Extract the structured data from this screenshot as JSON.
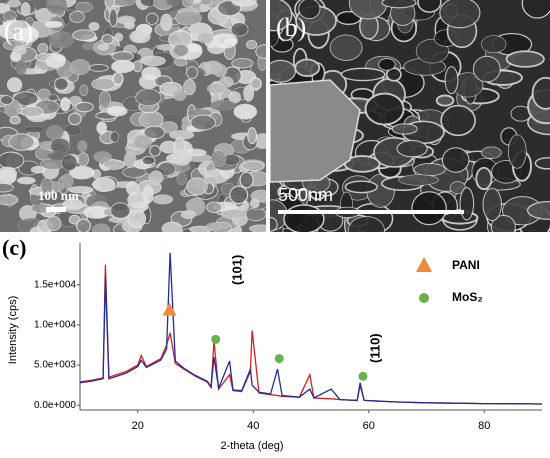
{
  "panels": {
    "a": {
      "label": "(a)",
      "scale_bar": "100 nm"
    },
    "b": {
      "label": "(b)",
      "scale_bar": "500nm"
    },
    "c": {
      "label": "(c)"
    }
  },
  "chart_data": {
    "type": "line",
    "x_label": "2-theta (deg)",
    "y_label": "Intensity (cps)",
    "x": [
      10,
      12,
      14,
      14.4,
      15,
      18,
      20,
      20.6,
      21.5,
      24,
      25,
      25.6,
      26.5,
      28,
      30,
      32,
      32.7,
      33.2,
      34,
      35.9,
      36.5,
      38,
      39.5,
      39.8,
      41,
      43,
      44.2,
      45,
      48,
      49.8,
      50.5,
      53.5,
      55,
      58,
      58.5,
      59.2,
      62,
      65,
      70,
      75,
      80,
      85,
      90
    ],
    "series": [
      {
        "name": "red",
        "color": "#d62020",
        "values": [
          2900,
          3100,
          3400,
          17500,
          3500,
          4200,
          5000,
          6200,
          4800,
          5800,
          7500,
          9000,
          5200,
          4500,
          3600,
          2900,
          2200,
          8000,
          2000,
          3800,
          1800,
          1700,
          4200,
          9300,
          1500,
          1300,
          1200,
          1100,
          1000,
          3800,
          900,
          800,
          700,
          600,
          2500,
          600,
          500,
          400,
          300,
          250,
          200,
          180,
          150
        ]
      },
      {
        "name": "blue",
        "color": "#1f2f9a",
        "values": [
          2800,
          3000,
          3300,
          16000,
          3300,
          4000,
          4800,
          5600,
          4700,
          5600,
          7000,
          19000,
          5500,
          4600,
          3700,
          3000,
          2300,
          6000,
          2100,
          5500,
          1900,
          1800,
          4500,
          2500,
          1600,
          1400,
          4500,
          1200,
          1000,
          2000,
          900,
          2000,
          700,
          600,
          2800,
          600,
          500,
          400,
          300,
          250,
          200,
          180,
          150
        ]
      }
    ],
    "markers": [
      {
        "name": "PANI",
        "color": "#f08a3c",
        "shape": "triangle",
        "x": [
          25.5
        ],
        "values": [
          11800
        ]
      },
      {
        "name": "MoS₂",
        "color": "#6ab04c",
        "shape": "circle",
        "x": [
          33.5,
          44.5,
          59
        ],
        "values": [
          8200,
          5800,
          3600
        ]
      }
    ],
    "annotations": [
      "(101)",
      "(110)"
    ],
    "xlim": [
      10,
      90
    ],
    "xticks": [
      20,
      40,
      60,
      80
    ],
    "ylim": [
      -600,
      20200
    ],
    "yticks": [
      {
        "value": 0,
        "label": "0.0e+000"
      },
      {
        "value": 5000,
        "label": "5.0e+003"
      },
      {
        "value": 10000,
        "label": "1.0e+004"
      },
      {
        "value": 15000,
        "label": "1.5e+004"
      }
    ]
  }
}
